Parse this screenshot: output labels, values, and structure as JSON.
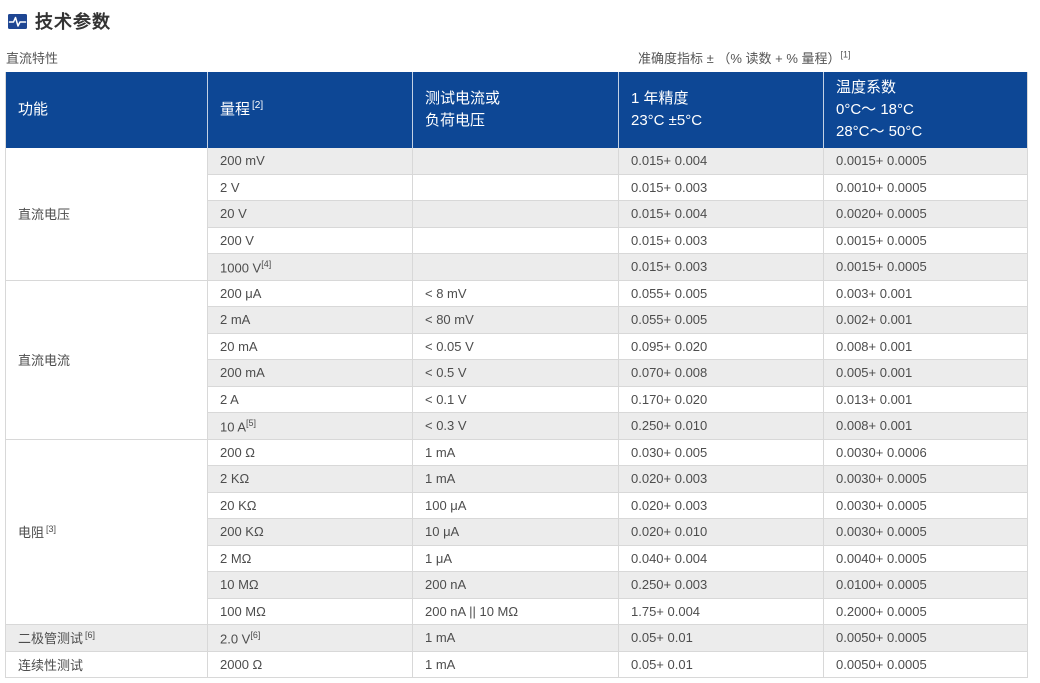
{
  "page": {
    "title": "技术参数",
    "section_label": "直流特性",
    "accuracy_note": "准确度指标 ± （% 读数 + % 量程）",
    "accuracy_note_sup": "[1]"
  },
  "colors": {
    "header_blue": "#0d4795",
    "row_shade": "#ececec",
    "border_gray": "#d8d8d8",
    "icon_blue": "#1e4693"
  },
  "icons": {
    "title_icon": "pulse-waveform-icon"
  },
  "table": {
    "headers": [
      {
        "label": "功能",
        "sup": ""
      },
      {
        "label": "量程",
        "sup": "[2]"
      },
      {
        "label": "测试电流或\n负荷电压",
        "sup": ""
      },
      {
        "label": "1 年精度\n23°C ±5°C",
        "sup": ""
      },
      {
        "label": "温度系数\n0°C～ 18°C\n28°C～ 50°C",
        "sup": ""
      }
    ],
    "groups": [
      {
        "function": "直流电压",
        "sup": "",
        "rows": [
          {
            "range": "200 mV",
            "range_sup": "",
            "test": "",
            "acc": "0.015+ 0.004",
            "temp": "0.0015+ 0.0005"
          },
          {
            "range": "2 V",
            "range_sup": "",
            "test": "",
            "acc": "0.015+ 0.003",
            "temp": "0.0010+ 0.0005"
          },
          {
            "range": "20 V",
            "range_sup": "",
            "test": "",
            "acc": "0.015+ 0.004",
            "temp": "0.0020+ 0.0005"
          },
          {
            "range": "200 V",
            "range_sup": "",
            "test": "",
            "acc": "0.015+ 0.003",
            "temp": "0.0015+ 0.0005"
          },
          {
            "range": "1000 V",
            "range_sup": "[4]",
            "test": "",
            "acc": "0.015+ 0.003",
            "temp": "0.0015+ 0.0005"
          }
        ]
      },
      {
        "function": "直流电流",
        "sup": "",
        "rows": [
          {
            "range": "200 μA",
            "range_sup": "",
            "test": "< 8 mV",
            "acc": "0.055+ 0.005",
            "temp": "0.003+ 0.001"
          },
          {
            "range": "2 mA",
            "range_sup": "",
            "test": "< 80 mV",
            "acc": "0.055+ 0.005",
            "temp": "0.002+ 0.001"
          },
          {
            "range": "20 mA",
            "range_sup": "",
            "test": "< 0.05 V",
            "acc": "0.095+ 0.020",
            "temp": "0.008+ 0.001"
          },
          {
            "range": "200 mA",
            "range_sup": "",
            "test": "< 0.5 V",
            "acc": "0.070+ 0.008",
            "temp": "0.005+ 0.001"
          },
          {
            "range": "2 A",
            "range_sup": "",
            "test": "< 0.1 V",
            "acc": "0.170+ 0.020",
            "temp": "0.013+ 0.001"
          },
          {
            "range": "10 A",
            "range_sup": "[5]",
            "test": "< 0.3 V",
            "acc": "0.250+ 0.010",
            "temp": "0.008+ 0.001"
          }
        ]
      },
      {
        "function": "电阻",
        "sup": "[3]",
        "rows": [
          {
            "range": "200 Ω",
            "range_sup": "",
            "test": "1 mA",
            "acc": "0.030+ 0.005",
            "temp": "0.0030+ 0.0006"
          },
          {
            "range": "2 KΩ",
            "range_sup": "",
            "test": "1 mA",
            "acc": "0.020+ 0.003",
            "temp": "0.0030+ 0.0005"
          },
          {
            "range": "20 KΩ",
            "range_sup": "",
            "test": "100 μA",
            "acc": "0.020+ 0.003",
            "temp": "0.0030+ 0.0005"
          },
          {
            "range": "200 KΩ",
            "range_sup": "",
            "test": "10 μA",
            "acc": "0.020+ 0.010",
            "temp": "0.0030+ 0.0005"
          },
          {
            "range": "2 MΩ",
            "range_sup": "",
            "test": "1 μA",
            "acc": "0.040+ 0.004",
            "temp": "0.0040+ 0.0005"
          },
          {
            "range": "10 MΩ",
            "range_sup": "",
            "test": "200 nA",
            "acc": "0.250+ 0.003",
            "temp": "0.0100+ 0.0005"
          },
          {
            "range": "100 MΩ",
            "range_sup": "",
            "test": "200 nA || 10 MΩ",
            "acc": "1.75+ 0.004",
            "temp": "0.2000+ 0.0005"
          }
        ]
      },
      {
        "function": "二极管测试",
        "sup": "[6]",
        "rows": [
          {
            "range": "2.0 V",
            "range_sup": "[6]",
            "test": "1 mA",
            "acc": "0.05+ 0.01",
            "temp": "0.0050+ 0.0005"
          }
        ]
      },
      {
        "function": "连续性测试",
        "sup": "",
        "rows": [
          {
            "range": "2000 Ω",
            "range_sup": "",
            "test": "1 mA",
            "acc": "0.05+ 0.01",
            "temp": "0.0050+ 0.0005"
          }
        ]
      }
    ]
  }
}
